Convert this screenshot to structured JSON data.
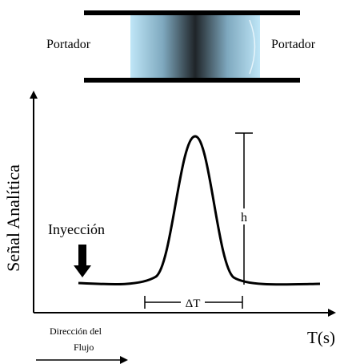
{
  "tube": {
    "left_label": "Portador",
    "right_label": "Portador"
  },
  "graph": {
    "y_axis_label": "Señal Analítica",
    "x_axis_label": "T(s)",
    "injection_label": "Inyección",
    "height_label": "h",
    "width_label": "ΔT",
    "flow_label": [
      "Dirección del",
      "Flujo"
    ]
  }
}
